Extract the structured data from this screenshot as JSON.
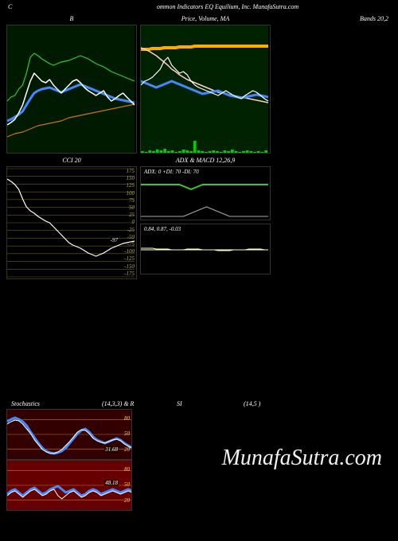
{
  "header": {
    "left": "C",
    "center": "ommon Indicators EQ Equilium, Inc. MunafaSutra.com"
  },
  "watermark": "MunafaSutra.com",
  "panels": {
    "bollinger": {
      "title": "B",
      "title_right": "Bands 20,2",
      "width": 160,
      "height": 160,
      "bg": "#001a00",
      "series": [
        {
          "color": "#33cc33",
          "width": 1.2,
          "points": [
            95,
            90,
            88,
            80,
            75,
            60,
            40,
            35,
            38,
            42,
            45,
            48,
            50,
            48,
            46,
            45,
            44,
            42,
            40,
            38,
            40,
            42,
            45,
            48,
            50,
            52,
            55,
            58,
            60,
            62,
            64,
            66,
            68,
            70
          ]
        },
        {
          "color": "#cc7700",
          "width": 1.2,
          "points": [
            140,
            138,
            136,
            135,
            134,
            132,
            130,
            128,
            126,
            125,
            124,
            123,
            122,
            121,
            120,
            118,
            116,
            115,
            114,
            113,
            112,
            111,
            110,
            109,
            108,
            107,
            106,
            105,
            104,
            103,
            102,
            101,
            100,
            99
          ]
        },
        {
          "color": "#4488ff",
          "width": 3,
          "points": [
            120,
            118,
            115,
            112,
            108,
            100,
            92,
            85,
            82,
            80,
            79,
            78,
            80,
            82,
            84,
            82,
            80,
            78,
            76,
            74,
            76,
            78,
            80,
            82,
            84,
            86,
            88,
            90,
            92,
            93,
            94,
            95,
            96,
            97
          ]
        },
        {
          "color": "#ffffff",
          "width": 1.5,
          "points": [
            125,
            122,
            118,
            110,
            100,
            85,
            70,
            60,
            65,
            70,
            72,
            68,
            75,
            80,
            85,
            80,
            75,
            70,
            68,
            72,
            78,
            82,
            85,
            88,
            85,
            82,
            90,
            95,
            92,
            88,
            85,
            90,
            95,
            100
          ]
        }
      ]
    },
    "price": {
      "title": "Price,   Volume,   MA",
      "width": 160,
      "height": 160,
      "bg": "#002200",
      "series": [
        {
          "color": "#ffaa00",
          "width": 4,
          "points": [
            30,
            30,
            30,
            29,
            29,
            29,
            28,
            28,
            28,
            28,
            27,
            27,
            27,
            27,
            26,
            26,
            26,
            26,
            26,
            26,
            26,
            26,
            26,
            26,
            26,
            26,
            26,
            26,
            26,
            26,
            26,
            26,
            26,
            26
          ]
        },
        {
          "color": "#ffcccc",
          "width": 1.5,
          "points": [
            28,
            30,
            32,
            35,
            38,
            42,
            46,
            50,
            55,
            58,
            62,
            65,
            68,
            70,
            72,
            74,
            76,
            78,
            80,
            82,
            84,
            85,
            86,
            87,
            88,
            89,
            90,
            91,
            92,
            93,
            94,
            95,
            96,
            97
          ]
        },
        {
          "color": "#4488ff",
          "width": 3,
          "points": [
            70,
            72,
            74,
            76,
            78,
            76,
            74,
            72,
            70,
            72,
            74,
            76,
            78,
            80,
            82,
            84,
            86,
            85,
            84,
            83,
            82,
            84,
            86,
            88,
            89,
            90,
            91,
            90,
            89,
            88,
            87,
            88,
            89,
            90
          ]
        },
        {
          "color": "#ffffff",
          "width": 1.2,
          "points": [
            75,
            70,
            68,
            65,
            60,
            55,
            45,
            40,
            50,
            55,
            60,
            58,
            62,
            70,
            75,
            78,
            80,
            82,
            84,
            86,
            88,
            85,
            82,
            85,
            88,
            90,
            92,
            88,
            85,
            82,
            84,
            88,
            92,
            95
          ]
        }
      ],
      "volume": {
        "color": "#00cc00",
        "bars": [
          2,
          1,
          3,
          2,
          4,
          3,
          5,
          2,
          3,
          1,
          2,
          4,
          3,
          2,
          15,
          3,
          2,
          1,
          2,
          3,
          2,
          1,
          3,
          2,
          4,
          2,
          1,
          2,
          3,
          2,
          1,
          2,
          1,
          3
        ]
      }
    },
    "cci": {
      "title": "CCI 20",
      "width": 160,
      "height": 140,
      "bg": "#000000",
      "grid_color": "#666600",
      "ticks": [
        "175",
        "150",
        "125",
        "100",
        "75",
        "50",
        "25",
        "0",
        "-25",
        "-50",
        "-75",
        "-100",
        "-125",
        "-150",
        "-175"
      ],
      "value_label": "-97",
      "series": [
        {
          "color": "#ffffff",
          "width": 1.2,
          "points": [
            15,
            18,
            22,
            28,
            40,
            50,
            55,
            58,
            62,
            65,
            68,
            70,
            75,
            80,
            85,
            90,
            95,
            98,
            100,
            102,
            105,
            108,
            110,
            112,
            110,
            108,
            105,
            102,
            100,
            98,
            96,
            95,
            94,
            93
          ]
        }
      ]
    },
    "adx": {
      "title": "ADX   & MACD 12,26,9",
      "width": 160,
      "height": 66,
      "bg": "#000000",
      "label": "ADX: 0   +DI: 70   -DI: 70",
      "series": [
        {
          "color": "#33cc33",
          "width": 2,
          "points": [
            22,
            22,
            22,
            22,
            22,
            22,
            22,
            22,
            22,
            22,
            22,
            24,
            26,
            28,
            26,
            24,
            22,
            22,
            22,
            22,
            22,
            22,
            22,
            22,
            22,
            22,
            22,
            22,
            22,
            22,
            22,
            22,
            22,
            22
          ]
        },
        {
          "color": "#aaaaaa",
          "width": 1,
          "points": [
            62,
            62,
            62,
            62,
            62,
            62,
            62,
            62,
            62,
            62,
            62,
            62,
            60,
            58,
            56,
            54,
            52,
            50,
            52,
            54,
            56,
            58,
            60,
            62,
            62,
            62,
            62,
            62,
            62,
            62,
            62,
            62,
            62,
            62
          ]
        }
      ]
    },
    "macd": {
      "width": 160,
      "height": 62,
      "bg": "#000000",
      "label": "0.84,  0.87,  -0.03",
      "series": [
        {
          "color": "#ffffff",
          "width": 1,
          "points": [
            32,
            32,
            32,
            32,
            32,
            32,
            32,
            32,
            32,
            32,
            32,
            32,
            32,
            32,
            32,
            32,
            32,
            32,
            32,
            32,
            32,
            32,
            32,
            32,
            32,
            32,
            32,
            32,
            32,
            32,
            32,
            32,
            32,
            32
          ]
        },
        {
          "color": "#ffffaa",
          "width": 1,
          "points": [
            30,
            30,
            30,
            30,
            31,
            31,
            31,
            31,
            32,
            32,
            32,
            32,
            31,
            31,
            31,
            31,
            32,
            32,
            32,
            32,
            33,
            33,
            33,
            33,
            32,
            32,
            32,
            32,
            31,
            31,
            31,
            31,
            32,
            32
          ]
        }
      ]
    },
    "stoch1": {
      "title_left": "Stochastics",
      "title_center": "(14,3,3) & R",
      "title_si": "SI",
      "title_right": "(14,5                       )",
      "width": 162,
      "height": 62,
      "bg": "#330000",
      "grid_color": "#cc7700",
      "ticks": [
        "80",
        "50",
        "20"
      ],
      "value_label": "31.68",
      "series": [
        {
          "color": "#4488ff",
          "width": 3,
          "points": [
            15,
            12,
            10,
            12,
            15,
            20,
            28,
            35,
            42,
            48,
            52,
            54,
            55,
            54,
            52,
            48,
            42,
            36,
            30,
            26,
            24,
            28,
            34,
            38,
            40,
            42,
            40,
            38,
            36,
            38,
            42,
            45,
            48,
            50
          ]
        },
        {
          "color": "#ffffff",
          "width": 1,
          "points": [
            18,
            15,
            13,
            14,
            18,
            24,
            30,
            38,
            44,
            50,
            53,
            55,
            55,
            53,
            50,
            45,
            40,
            34,
            28,
            25,
            26,
            30,
            36,
            39,
            41,
            42,
            40,
            38,
            37,
            39,
            43,
            46,
            48,
            50
          ]
        }
      ]
    },
    "stoch2": {
      "width": 162,
      "height": 62,
      "bg": "#660000",
      "grid_color": "#cc7700",
      "ticks": [
        "80",
        "50",
        "20"
      ],
      "value_label": "48.18",
      "series": [
        {
          "color": "#4488ff",
          "width": 3,
          "points": [
            42,
            38,
            36,
            40,
            44,
            40,
            36,
            34,
            38,
            42,
            40,
            36,
            34,
            32,
            36,
            40,
            38,
            36,
            40,
            44,
            42,
            38,
            36,
            38,
            42,
            40,
            38,
            36,
            38,
            40,
            38,
            36,
            38,
            40
          ]
        },
        {
          "color": "#ffffff",
          "width": 1,
          "points": [
            44,
            40,
            38,
            42,
            46,
            42,
            38,
            36,
            40,
            44,
            42,
            38,
            36,
            44,
            48,
            44,
            40,
            38,
            42,
            46,
            44,
            40,
            38,
            40,
            44,
            42,
            40,
            38,
            40,
            42,
            40,
            38,
            40,
            42
          ]
        }
      ]
    }
  }
}
